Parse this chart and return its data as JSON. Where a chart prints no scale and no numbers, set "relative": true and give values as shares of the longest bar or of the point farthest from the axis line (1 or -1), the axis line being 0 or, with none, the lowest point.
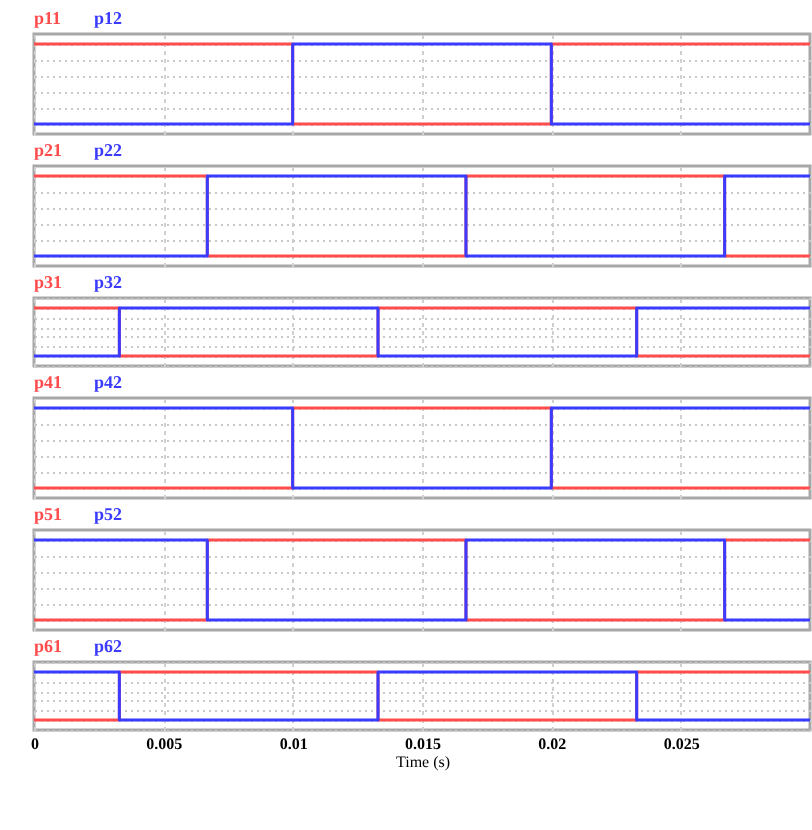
{
  "chart_data": [
    {
      "type": "step",
      "relative": true,
      "x": [
        0,
        0.01,
        0.02,
        0.03
      ],
      "xlim": [
        0,
        0.03
      ],
      "xticks": [
        0,
        0.005,
        0.01,
        0.015,
        0.02,
        0.025
      ],
      "tick_labels": false,
      "grid": true,
      "series": [
        {
          "name": "p11",
          "color": "#ff4d4d",
          "values": [
            1,
            0,
            1,
            1
          ]
        },
        {
          "name": "p12",
          "color": "#3b3bff",
          "values": [
            0,
            1,
            0,
            0
          ]
        }
      ]
    },
    {
      "type": "step",
      "relative": true,
      "x": [
        0,
        0.0067,
        0.0167,
        0.0267,
        0.03
      ],
      "xlim": [
        0,
        0.03
      ],
      "xticks": [
        0,
        0.005,
        0.01,
        0.015,
        0.02,
        0.025
      ],
      "tick_labels": false,
      "grid": true,
      "series": [
        {
          "name": "p21",
          "color": "#ff4d4d",
          "values": [
            1,
            0,
            1,
            0,
            0
          ]
        },
        {
          "name": "p22",
          "color": "#3b3bff",
          "values": [
            0,
            1,
            0,
            1,
            1
          ]
        }
      ]
    },
    {
      "type": "step",
      "relative": true,
      "x": [
        0,
        0.0033,
        0.0133,
        0.0233,
        0.03
      ],
      "xlim": [
        0,
        0.03
      ],
      "xticks": [
        0,
        0.005,
        0.01,
        0.015,
        0.02,
        0.025
      ],
      "tick_labels": false,
      "grid": true,
      "series": [
        {
          "name": "p31",
          "color": "#ff4d4d",
          "values": [
            1,
            0,
            1,
            0,
            0
          ]
        },
        {
          "name": "p32",
          "color": "#3b3bff",
          "values": [
            0,
            1,
            0,
            1,
            1
          ]
        }
      ]
    },
    {
      "type": "step",
      "relative": true,
      "x": [
        0,
        0.01,
        0.02,
        0.03
      ],
      "xlim": [
        0,
        0.03
      ],
      "xticks": [
        0,
        0.005,
        0.01,
        0.015,
        0.02,
        0.025
      ],
      "tick_labels": false,
      "grid": true,
      "series": [
        {
          "name": "p41",
          "color": "#ff4d4d",
          "values": [
            0,
            1,
            0,
            0
          ]
        },
        {
          "name": "p42",
          "color": "#3b3bff",
          "values": [
            1,
            0,
            1,
            1
          ]
        }
      ]
    },
    {
      "type": "step",
      "relative": true,
      "x": [
        0,
        0.0067,
        0.0167,
        0.0267,
        0.03
      ],
      "xlim": [
        0,
        0.03
      ],
      "xticks": [
        0,
        0.005,
        0.01,
        0.015,
        0.02,
        0.025
      ],
      "tick_labels": false,
      "grid": true,
      "series": [
        {
          "name": "p51",
          "color": "#ff4d4d",
          "values": [
            0,
            1,
            0,
            1,
            1
          ]
        },
        {
          "name": "p52",
          "color": "#3b3bff",
          "values": [
            1,
            0,
            1,
            0,
            0
          ]
        }
      ]
    },
    {
      "type": "step",
      "relative": true,
      "x": [
        0,
        0.0033,
        0.0133,
        0.0233,
        0.03
      ],
      "xlim": [
        0,
        0.03
      ],
      "xticks": [
        0,
        0.005,
        0.01,
        0.015,
        0.02,
        0.025
      ],
      "xlabel": "Time (s)",
      "tick_labels": "x",
      "grid": true,
      "series": [
        {
          "name": "p61",
          "color": "#ff4d4d",
          "values": [
            0,
            1,
            0,
            1,
            1
          ]
        },
        {
          "name": "p62",
          "color": "#3b3bff",
          "values": [
            1,
            0,
            1,
            0,
            0
          ]
        }
      ]
    }
  ]
}
